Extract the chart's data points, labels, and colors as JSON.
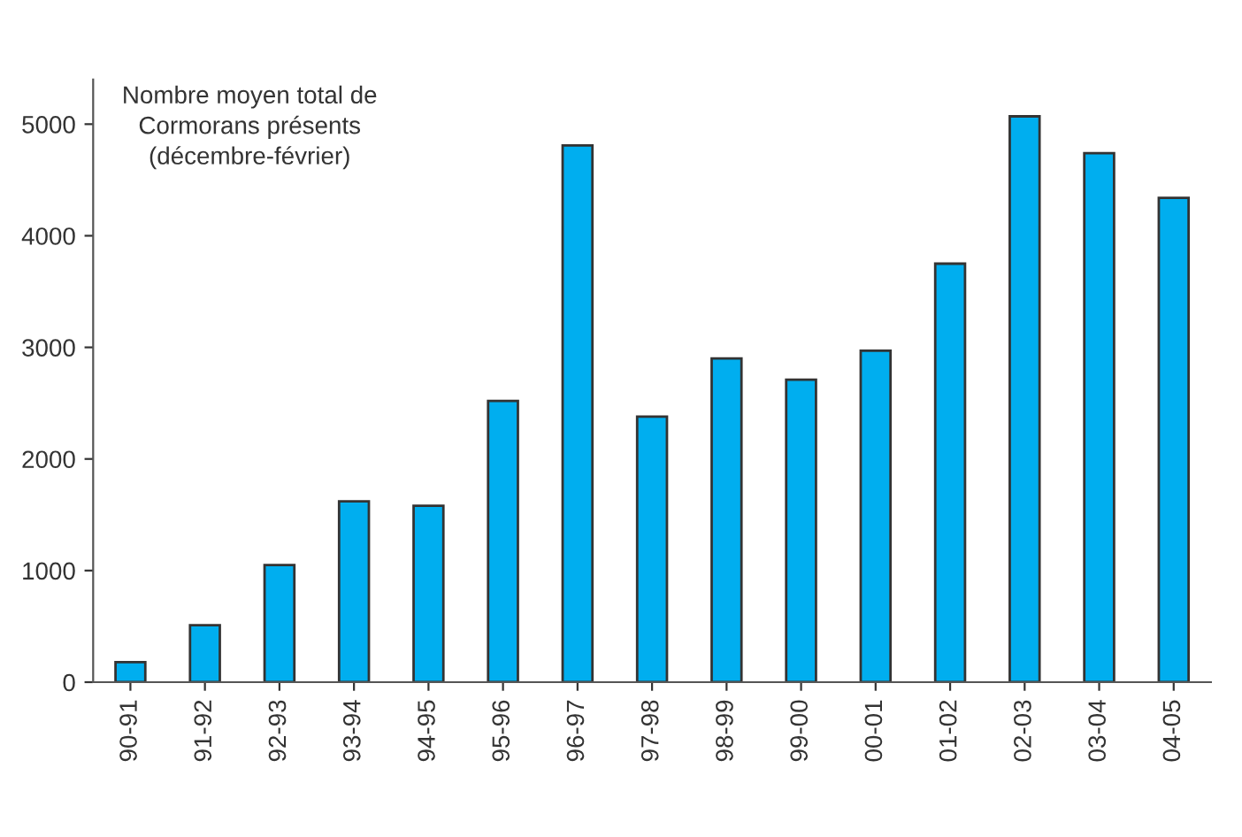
{
  "chart_data": {
    "type": "bar",
    "title": "Nombre moyen total de\nCormorans présents\n(décembre-février)",
    "categories": [
      "90-91",
      "91-92",
      "92-93",
      "93-94",
      "94-95",
      "95-96",
      "96-97",
      "97-98",
      "98-99",
      "99-00",
      "00-01",
      "01-02",
      "02-03",
      "03-04",
      "04-05"
    ],
    "values": [
      180,
      510,
      1050,
      1620,
      1580,
      2520,
      4810,
      2380,
      2900,
      2710,
      2970,
      3750,
      5070,
      4740,
      4340
    ],
    "color": "#00aeef",
    "ylim": [
      0,
      5400
    ],
    "yticks": [
      0,
      1000,
      2000,
      3000,
      4000,
      5000
    ],
    "grid": false,
    "legend": false
  }
}
